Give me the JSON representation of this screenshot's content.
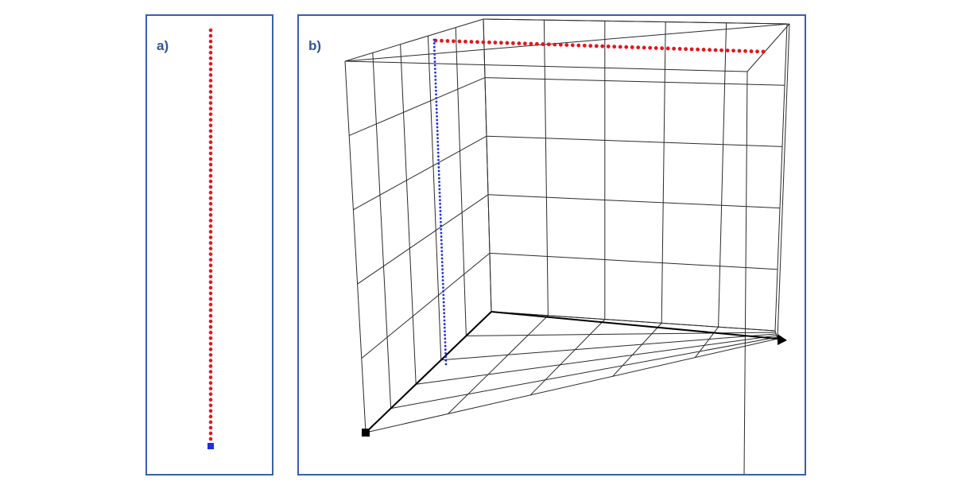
{
  "panels": [
    {
      "id": "a",
      "label": "a)"
    },
    {
      "id": "b",
      "label": "b)"
    }
  ],
  "colors": {
    "border": "#3b5fa8",
    "label": "#2f5597",
    "red_dots": "#e8141c",
    "blue_dots": "#1f2fe0",
    "grid": "#2a2a2a",
    "axis": "#000000"
  }
}
